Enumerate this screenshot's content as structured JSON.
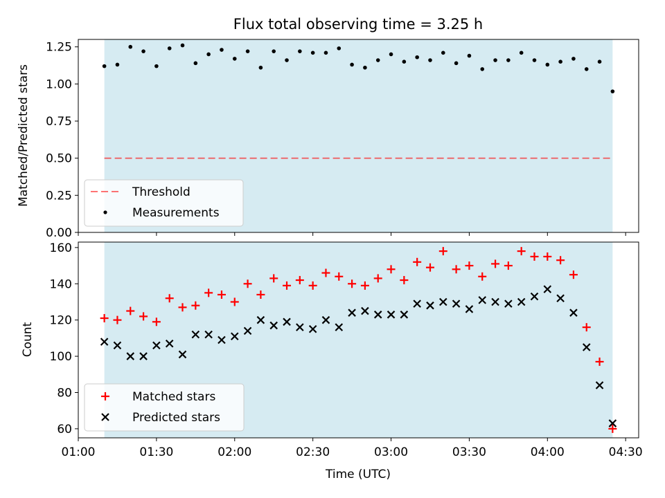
{
  "colors": {
    "shade": "#add8e6",
    "threshold": "#ff0000",
    "matched": "#ff0000",
    "predicted": "#000000",
    "measurements": "#000000"
  },
  "chart_data": [
    {
      "type": "scatter",
      "title": "Flux total observing time = 3.25 h",
      "xlabel": "",
      "ylabel": "Matched/Predicted stars",
      "ylim": [
        0,
        1.3
      ],
      "yticks": [
        "0.00",
        "0.25",
        "0.50",
        "0.75",
        "1.00",
        "1.25"
      ],
      "ytick_values": [
        0,
        0.25,
        0.5,
        0.75,
        1.0,
        1.25
      ],
      "shaded_x_range": [
        "01:10",
        "04:25"
      ],
      "threshold": 0.5,
      "legend_position": "lower-left",
      "series": [
        {
          "name": "Threshold",
          "kind": "dashed-line",
          "value": 0.5
        },
        {
          "name": "Measurements",
          "kind": "dots",
          "x": [
            "01:10",
            "01:15",
            "01:20",
            "01:25",
            "01:30",
            "01:35",
            "01:40",
            "01:45",
            "01:50",
            "01:55",
            "02:00",
            "02:05",
            "02:10",
            "02:15",
            "02:20",
            "02:25",
            "02:30",
            "02:35",
            "02:40",
            "02:45",
            "02:50",
            "02:55",
            "03:00",
            "03:05",
            "03:10",
            "03:15",
            "03:20",
            "03:25",
            "03:30",
            "03:35",
            "03:40",
            "03:45",
            "03:50",
            "03:55",
            "04:00",
            "04:05",
            "04:10",
            "04:15",
            "04:20",
            "04:25"
          ],
          "y": [
            1.12,
            1.13,
            1.25,
            1.22,
            1.12,
            1.24,
            1.26,
            1.14,
            1.2,
            1.23,
            1.17,
            1.22,
            1.11,
            1.22,
            1.16,
            1.22,
            1.21,
            1.21,
            1.24,
            1.13,
            1.11,
            1.16,
            1.2,
            1.15,
            1.18,
            1.16,
            1.21,
            1.14,
            1.19,
            1.1,
            1.16,
            1.16,
            1.21,
            1.16,
            1.13,
            1.15,
            1.17,
            1.1,
            1.15,
            0.95
          ]
        }
      ]
    },
    {
      "type": "scatter",
      "title": "",
      "xlabel": "Time (UTC)",
      "ylabel": "Count",
      "ylim": [
        55,
        163
      ],
      "yticks": [
        "60",
        "80",
        "100",
        "120",
        "140",
        "160"
      ],
      "ytick_values": [
        60,
        80,
        100,
        120,
        140,
        160
      ],
      "xlim": [
        "01:00",
        "04:35"
      ],
      "xticks": [
        "01:00",
        "01:30",
        "02:00",
        "02:30",
        "03:00",
        "03:30",
        "04:00",
        "04:30"
      ],
      "shaded_x_range": [
        "01:10",
        "04:25"
      ],
      "legend_position": "lower-left",
      "series": [
        {
          "name": "Matched stars",
          "marker": "plus",
          "x": [
            "01:10",
            "01:15",
            "01:20",
            "01:25",
            "01:30",
            "01:35",
            "01:40",
            "01:45",
            "01:50",
            "01:55",
            "02:00",
            "02:05",
            "02:10",
            "02:15",
            "02:20",
            "02:25",
            "02:30",
            "02:35",
            "02:40",
            "02:45",
            "02:50",
            "02:55",
            "03:00",
            "03:05",
            "03:10",
            "03:15",
            "03:20",
            "03:25",
            "03:30",
            "03:35",
            "03:40",
            "03:45",
            "03:50",
            "03:55",
            "04:00",
            "04:05",
            "04:10",
            "04:15",
            "04:20",
            "04:25"
          ],
          "y": [
            121,
            120,
            125,
            122,
            119,
            132,
            127,
            128,
            135,
            134,
            130,
            140,
            134,
            143,
            139,
            142,
            139,
            146,
            144,
            140,
            139,
            143,
            148,
            142,
            152,
            149,
            158,
            148,
            150,
            144,
            151,
            150,
            158,
            155,
            155,
            153,
            145,
            116,
            97,
            60
          ]
        },
        {
          "name": "Predicted stars",
          "marker": "x",
          "x": [
            "01:10",
            "01:15",
            "01:20",
            "01:25",
            "01:30",
            "01:35",
            "01:40",
            "01:45",
            "01:50",
            "01:55",
            "02:00",
            "02:05",
            "02:10",
            "02:15",
            "02:20",
            "02:25",
            "02:30",
            "02:35",
            "02:40",
            "02:45",
            "02:50",
            "02:55",
            "03:00",
            "03:05",
            "03:10",
            "03:15",
            "03:20",
            "03:25",
            "03:30",
            "03:35",
            "03:40",
            "03:45",
            "03:50",
            "03:55",
            "04:00",
            "04:05",
            "04:10",
            "04:15",
            "04:20",
            "04:25"
          ],
          "y": [
            108,
            106,
            100,
            100,
            106,
            107,
            101,
            112,
            112,
            109,
            111,
            114,
            120,
            117,
            119,
            116,
            115,
            120,
            116,
            124,
            125,
            123,
            123,
            123,
            129,
            128,
            130,
            129,
            126,
            131,
            130,
            129,
            130,
            133,
            137,
            132,
            124,
            105,
            84,
            63
          ]
        }
      ]
    }
  ]
}
